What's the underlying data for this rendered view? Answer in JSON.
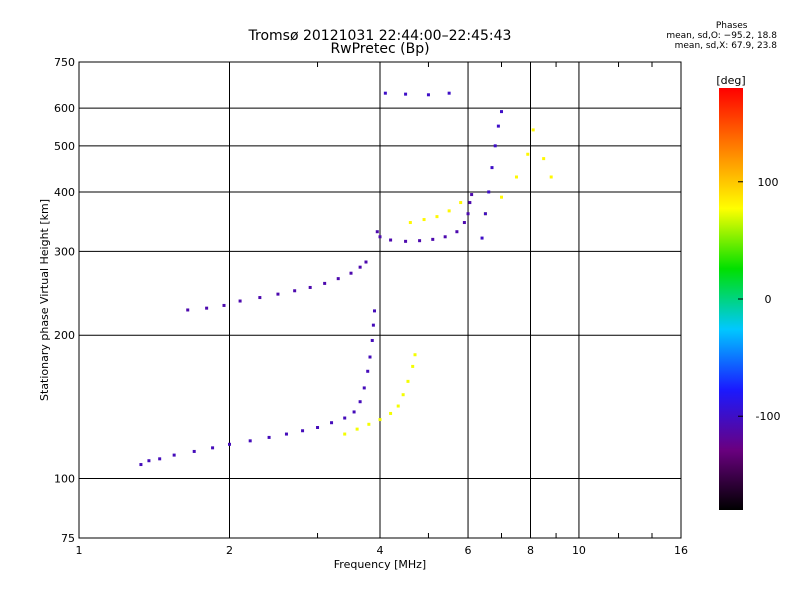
{
  "chart_data": {
    "type": "scatter",
    "title": "Tromsø 20121031 22:44:00–22:45:43",
    "subtitle": "RwPretec (Bp)",
    "xlabel": "Frequency [MHz]",
    "ylabel": "Stationary phase Virtual Height [km]",
    "xscale": "log",
    "yscale": "log",
    "xlim": [
      1,
      16
    ],
    "ylim": [
      75,
      750
    ],
    "x_ticks": [
      1,
      2,
      4,
      6,
      8,
      10,
      16
    ],
    "y_ticks": [
      75,
      100,
      200,
      300,
      400,
      500,
      600,
      750
    ],
    "grid": true,
    "colorbar": {
      "label": "[deg]",
      "range": [
        -180,
        180
      ],
      "ticks": [
        -100,
        0,
        100
      ],
      "colormap": [
        "#000000",
        "#6a0080",
        "#1a1aff",
        "#00c8ff",
        "#00e000",
        "#ffff00",
        "#ff8000",
        "#ff0000"
      ]
    },
    "stats": {
      "header": "Phases",
      "line1": "mean, sd,O:  −95.2, 18.8",
      "line2": "mean, sd,X:   67.9, 23.8"
    },
    "series": [
      {
        "trace": "low-F",
        "phase_deg": -105,
        "points": [
          [
            1.33,
            107
          ],
          [
            1.38,
            109
          ],
          [
            1.45,
            110
          ],
          [
            1.55,
            112
          ],
          [
            1.7,
            114
          ],
          [
            1.85,
            116
          ],
          [
            2.0,
            118
          ],
          [
            2.2,
            120
          ],
          [
            2.4,
            122
          ],
          [
            2.6,
            124
          ],
          [
            2.8,
            126
          ],
          [
            3.0,
            128
          ],
          [
            3.2,
            131
          ],
          [
            3.4,
            134
          ],
          [
            3.55,
            138
          ],
          [
            3.65,
            145
          ],
          [
            3.72,
            155
          ],
          [
            3.78,
            168
          ],
          [
            3.82,
            180
          ],
          [
            3.86,
            195
          ],
          [
            3.88,
            210
          ],
          [
            3.9,
            225
          ]
        ]
      },
      {
        "trace": "upper-F",
        "phase_deg": -110,
        "points": [
          [
            1.65,
            226
          ],
          [
            1.8,
            228
          ],
          [
            1.95,
            231
          ],
          [
            2.1,
            236
          ],
          [
            2.3,
            240
          ],
          [
            2.5,
            244
          ],
          [
            2.7,
            248
          ],
          [
            2.9,
            252
          ],
          [
            3.1,
            257
          ],
          [
            3.3,
            263
          ],
          [
            3.5,
            270
          ],
          [
            3.65,
            278
          ],
          [
            3.75,
            285
          ]
        ]
      },
      {
        "trace": "high-F",
        "phase_deg": -110,
        "points": [
          [
            3.95,
            330
          ],
          [
            4.0,
            322
          ],
          [
            4.2,
            317
          ],
          [
            4.5,
            315
          ],
          [
            4.8,
            316
          ],
          [
            5.1,
            318
          ],
          [
            5.4,
            322
          ],
          [
            5.7,
            330
          ],
          [
            5.9,
            345
          ],
          [
            6.0,
            360
          ],
          [
            6.05,
            380
          ],
          [
            6.1,
            395
          ]
        ]
      },
      {
        "trace": "x-mode-low",
        "phase_deg": 75,
        "points": [
          [
            3.4,
            124
          ],
          [
            3.6,
            127
          ],
          [
            3.8,
            130
          ],
          [
            4.0,
            133
          ],
          [
            4.2,
            137
          ],
          [
            4.35,
            142
          ],
          [
            4.45,
            150
          ],
          [
            4.55,
            160
          ],
          [
            4.65,
            172
          ],
          [
            4.7,
            182
          ]
        ]
      },
      {
        "trace": "x-mode-high",
        "phase_deg": 80,
        "points": [
          [
            4.6,
            345
          ],
          [
            4.9,
            350
          ],
          [
            5.2,
            355
          ],
          [
            5.5,
            365
          ],
          [
            5.8,
            380
          ],
          [
            6.5,
            360
          ],
          [
            7.0,
            390
          ],
          [
            7.5,
            430
          ],
          [
            7.9,
            480
          ],
          [
            8.1,
            540
          ],
          [
            8.5,
            470
          ],
          [
            8.8,
            430
          ]
        ]
      },
      {
        "trace": "f-high-o",
        "phase_deg": -100,
        "points": [
          [
            6.4,
            320
          ],
          [
            6.5,
            360
          ],
          [
            6.6,
            400
          ],
          [
            6.7,
            450
          ],
          [
            6.8,
            500
          ],
          [
            6.9,
            550
          ],
          [
            7.0,
            590
          ],
          [
            4.1,
            645
          ],
          [
            4.5,
            642
          ],
          [
            5.0,
            640
          ],
          [
            5.5,
            645
          ]
        ]
      }
    ]
  }
}
